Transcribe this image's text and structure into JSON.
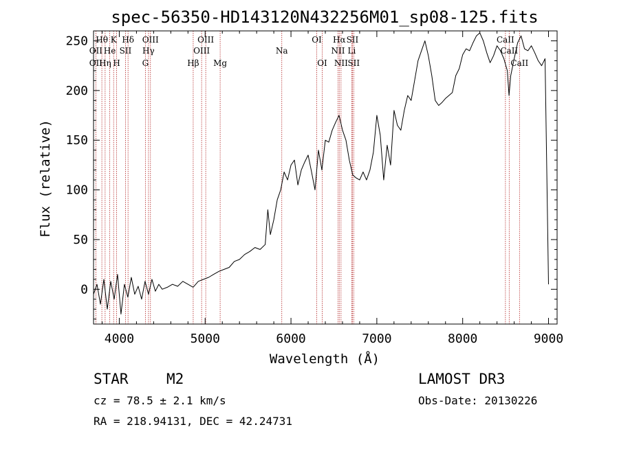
{
  "chart_data": {
    "type": "line",
    "title": "spec-56350-HD143120N432256M01_sp08-125.fits",
    "xlabel": "Wavelength (Å)",
    "ylabel": "Flux (relative)",
    "xlim": [
      3700,
      9100
    ],
    "ylim": [
      -35,
      260
    ],
    "xticks": [
      4000,
      5000,
      6000,
      7000,
      8000,
      9000
    ],
    "yticks": [
      0,
      50,
      100,
      150,
      200,
      250
    ],
    "series": [
      {
        "name": "spectrum",
        "x": [
          3700,
          3740,
          3780,
          3820,
          3860,
          3900,
          3940,
          3980,
          4020,
          4060,
          4100,
          4140,
          4180,
          4220,
          4260,
          4300,
          4340,
          4380,
          4420,
          4460,
          4500,
          4560,
          4620,
          4680,
          4740,
          4800,
          4860,
          4920,
          4980,
          5040,
          5100,
          5160,
          5220,
          5280,
          5340,
          5400,
          5460,
          5520,
          5580,
          5640,
          5700,
          5730,
          5760,
          5800,
          5840,
          5880,
          5920,
          5960,
          6000,
          6040,
          6080,
          6120,
          6160,
          6200,
          6240,
          6280,
          6320,
          6360,
          6400,
          6440,
          6480,
          6520,
          6560,
          6600,
          6640,
          6680,
          6720,
          6760,
          6800,
          6840,
          6880,
          6920,
          6960,
          7000,
          7040,
          7080,
          7120,
          7160,
          7200,
          7240,
          7280,
          7320,
          7360,
          7400,
          7440,
          7480,
          7520,
          7560,
          7600,
          7640,
          7680,
          7720,
          7760,
          7800,
          7840,
          7880,
          7920,
          7960,
          8000,
          8040,
          8080,
          8120,
          8160,
          8200,
          8240,
          8280,
          8320,
          8360,
          8400,
          8440,
          8480,
          8520,
          8540,
          8560,
          8600,
          8640,
          8680,
          8720,
          8760,
          8800,
          8840,
          8880,
          8920,
          8960,
          8990,
          9000
        ],
        "values": [
          -5,
          5,
          -15,
          10,
          -20,
          8,
          -10,
          15,
          -25,
          5,
          -8,
          12,
          -5,
          3,
          -10,
          8,
          -5,
          10,
          -2,
          5,
          0,
          2,
          5,
          3,
          8,
          5,
          2,
          8,
          10,
          12,
          15,
          18,
          20,
          22,
          28,
          30,
          35,
          38,
          42,
          40,
          45,
          80,
          55,
          70,
          90,
          100,
          118,
          110,
          125,
          130,
          105,
          120,
          128,
          135,
          118,
          100,
          140,
          120,
          150,
          148,
          160,
          168,
          175,
          160,
          150,
          130,
          115,
          112,
          110,
          118,
          110,
          120,
          138,
          175,
          155,
          110,
          145,
          125,
          180,
          165,
          160,
          180,
          195,
          190,
          210,
          230,
          240,
          250,
          235,
          215,
          190,
          185,
          188,
          192,
          195,
          198,
          215,
          222,
          236,
          242,
          240,
          248,
          255,
          258,
          250,
          238,
          228,
          235,
          245,
          240,
          232,
          220,
          195,
          215,
          232,
          248,
          255,
          242,
          240,
          245,
          238,
          230,
          225,
          232,
          60,
          5
        ]
      }
    ],
    "emission_lines": [
      {
        "label": "Hθ",
        "wavelength": 3797,
        "row": 0
      },
      {
        "label": "OII",
        "wavelength": 3727,
        "row": 1
      },
      {
        "label": "OII",
        "wavelength": 3727,
        "row": 2
      },
      {
        "label": "He",
        "wavelength": 3889,
        "row": 1
      },
      {
        "label": "Hη",
        "wavelength": 3835,
        "row": 2
      },
      {
        "label": "K",
        "wavelength": 3934,
        "row": 0
      },
      {
        "label": "SII",
        "wavelength": 4072,
        "row": 1
      },
      {
        "label": "H",
        "wavelength": 3969,
        "row": 2
      },
      {
        "label": "Hδ",
        "wavelength": 4102,
        "row": 0
      },
      {
        "label": "OIII",
        "wavelength": 4363,
        "row": 0
      },
      {
        "label": "Hγ",
        "wavelength": 4340,
        "row": 1
      },
      {
        "label": "G",
        "wavelength": 4304,
        "row": 2
      },
      {
        "label": "Hβ",
        "wavelength": 4861,
        "row": 2
      },
      {
        "label": "OIII",
        "wavelength": 5007,
        "row": 0
      },
      {
        "label": "OIII",
        "wavelength": 4959,
        "row": 1
      },
      {
        "label": "Mg",
        "wavelength": 5175,
        "row": 2
      },
      {
        "label": "Na",
        "wavelength": 5893,
        "row": 1
      },
      {
        "label": "OI",
        "wavelength": 6300,
        "row": 0
      },
      {
        "label": "OI",
        "wavelength": 6364,
        "row": 2
      },
      {
        "label": "Hα",
        "wavelength": 6563,
        "row": 0
      },
      {
        "label": "NII",
        "wavelength": 6548,
        "row": 1
      },
      {
        "label": "NII",
        "wavelength": 6583,
        "row": 2
      },
      {
        "label": "SII",
        "wavelength": 6716,
        "row": 0
      },
      {
        "label": "Li",
        "wavelength": 6708,
        "row": 1
      },
      {
        "label": "SII",
        "wavelength": 6731,
        "row": 2
      },
      {
        "label": "CaII",
        "wavelength": 8498,
        "row": 0
      },
      {
        "label": "CaII",
        "wavelength": 8542,
        "row": 1
      },
      {
        "label": "CaII",
        "wavelength": 8662,
        "row": 2
      }
    ],
    "line_marker_wavelengths": [
      3727,
      3797,
      3835,
      3889,
      3934,
      3969,
      4072,
      4102,
      4304,
      4340,
      4363,
      4861,
      4959,
      5007,
      5175,
      5893,
      6300,
      6364,
      6548,
      6563,
      6583,
      6708,
      6716,
      6731,
      8498,
      8542,
      8662
    ]
  },
  "info": {
    "class_label": "STAR",
    "subclass": "M2",
    "survey": "LAMOST DR3",
    "cz": "cz = 78.5 ± 2.1 km/s",
    "obs_date": "Obs-Date: 20130226",
    "radec": "RA = 218.94131, DEC =  42.24731"
  },
  "colors": {
    "marker": "#b22222",
    "spectrum": "#000000",
    "frame": "#000000"
  }
}
